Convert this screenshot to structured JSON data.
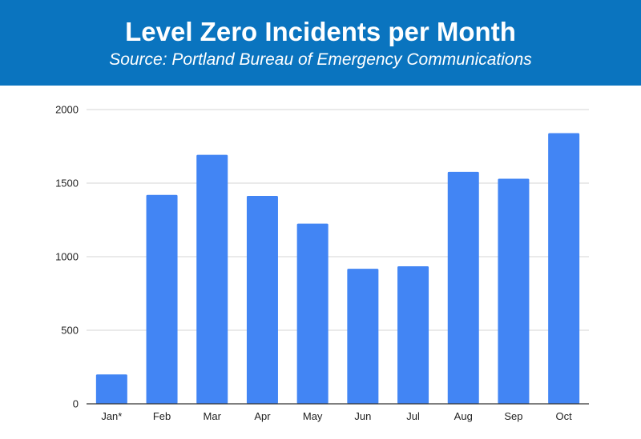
{
  "header": {
    "title": "Level Zero Incidents per Month",
    "subtitle": "Source: Portland Bureau of Emergency Communications",
    "background_color": "#0a74bf"
  },
  "chart_data": {
    "type": "bar",
    "title": "Level Zero Incidents per Month",
    "subtitle": "Source: Portland Bureau of Emergency Communications",
    "xlabel": "",
    "ylabel": "",
    "categories": [
      "Jan*",
      "Feb",
      "Mar",
      "Apr",
      "May",
      "Jun",
      "Jul",
      "Aug",
      "Sep",
      "Oct"
    ],
    "values": [
      200,
      1420,
      1692,
      1413,
      1225,
      918,
      935,
      1577,
      1530,
      1840
    ],
    "ylim": [
      0,
      2000
    ],
    "yticks": [
      "0",
      "500",
      "1000",
      "1500",
      "2000"
    ],
    "grid": true,
    "legend": "none",
    "bar_color": "#4285f4"
  }
}
